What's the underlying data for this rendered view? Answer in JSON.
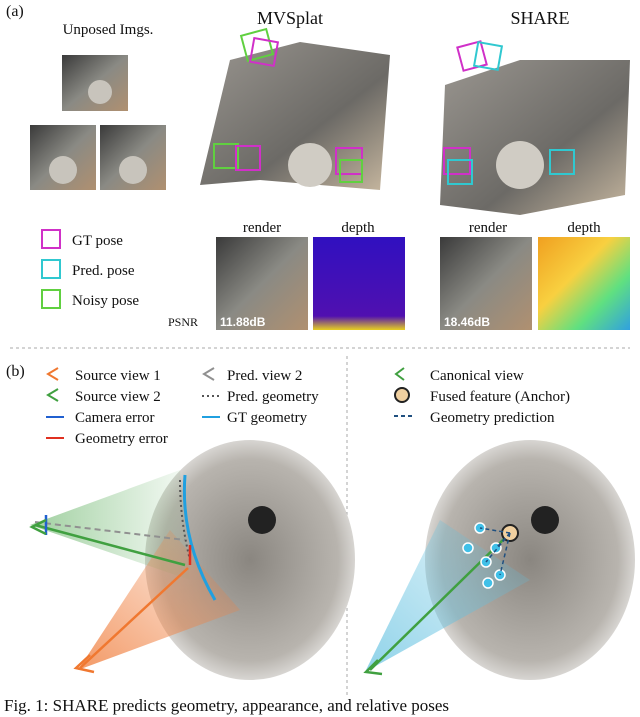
{
  "panel_a": {
    "label": "(a)",
    "input_title": "Unposed Imgs.",
    "methods": [
      {
        "name": "MVSplat",
        "render_label": "render",
        "depth_label": "depth",
        "psnr": "11.88dB"
      },
      {
        "name": "SHARE",
        "render_label": "render",
        "depth_label": "depth",
        "psnr": "18.46dB"
      }
    ],
    "psnr_label": "PSNR",
    "legend": [
      "GT pose",
      "Pred. pose",
      "Noisy pose"
    ]
  },
  "panel_b": {
    "label": "(b)",
    "left_legend": [
      "Source view 1",
      "Source view 2",
      "Camera error",
      "Geometry error",
      "Pred. view 2",
      "Pred. geometry",
      "GT geometry"
    ],
    "right_legend": [
      "Canonical view",
      "Fused feature (Anchor)",
      "Geometry prediction"
    ]
  },
  "caption": "Fig. 1: SHARE predicts geometry, appearance, and relative poses"
}
